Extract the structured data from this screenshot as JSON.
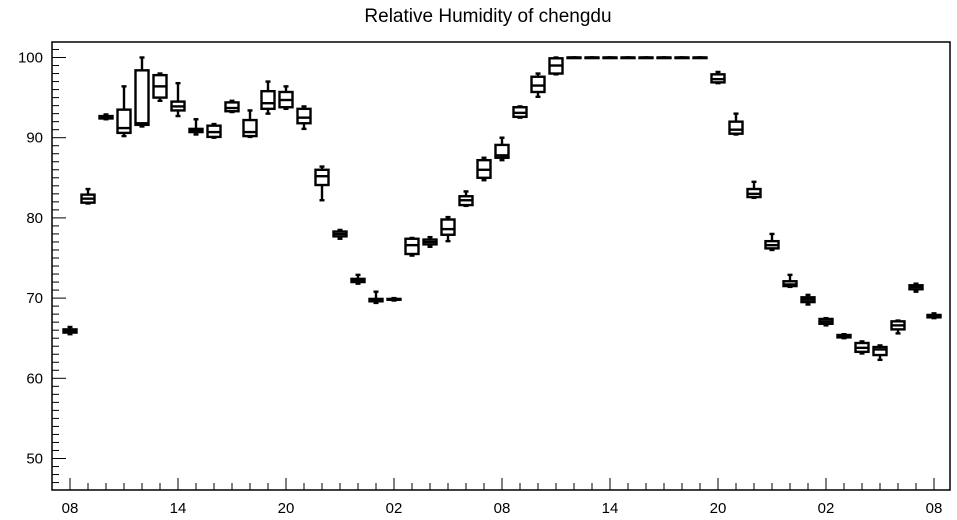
{
  "chart_data": {
    "type": "boxplot",
    "title": "Relative Humidity of chengdu",
    "xlabel": "",
    "ylabel": "",
    "ylim": [
      46,
      102
    ],
    "yticks": [
      50,
      60,
      70,
      80,
      90,
      100
    ],
    "x_tick_labels": [
      {
        "index": 0,
        "label": "08"
      },
      {
        "index": 6,
        "label": "14"
      },
      {
        "index": 12,
        "label": "20"
      },
      {
        "index": 18,
        "label": "02"
      },
      {
        "index": 24,
        "label": "08"
      },
      {
        "index": 30,
        "label": "14"
      },
      {
        "index": 36,
        "label": "20"
      },
      {
        "index": 42,
        "label": "02"
      },
      {
        "index": 48,
        "label": "08"
      }
    ],
    "grid": false,
    "boxes": [
      {
        "index": 0,
        "min": 65.5,
        "q1": 65.7,
        "median": 65.9,
        "q3": 66.1,
        "max": 66.4
      },
      {
        "index": 1,
        "min": 81.8,
        "q1": 81.9,
        "median": 82.4,
        "q3": 82.9,
        "max": 83.6
      },
      {
        "index": 2,
        "min": 92.3,
        "q1": 92.4,
        "median": 92.6,
        "q3": 92.7,
        "max": 92.9
      },
      {
        "index": 3,
        "min": 90.2,
        "q1": 90.6,
        "median": 91.2,
        "q3": 93.5,
        "max": 96.4
      },
      {
        "index": 4,
        "min": 91.4,
        "q1": 91.6,
        "median": 91.8,
        "q3": 98.4,
        "max": 100.0
      },
      {
        "index": 5,
        "min": 94.6,
        "q1": 95.0,
        "median": 96.4,
        "q3": 97.8,
        "max": 98.0
      },
      {
        "index": 6,
        "min": 92.7,
        "q1": 93.4,
        "median": 93.9,
        "q3": 94.5,
        "max": 96.8
      },
      {
        "index": 7,
        "min": 90.4,
        "q1": 90.7,
        "median": 90.9,
        "q3": 91.1,
        "max": 92.3
      },
      {
        "index": 8,
        "min": 90.0,
        "q1": 90.1,
        "median": 90.7,
        "q3": 91.5,
        "max": 91.7
      },
      {
        "index": 9,
        "min": 93.2,
        "q1": 93.3,
        "median": 93.7,
        "q3": 94.4,
        "max": 94.6
      },
      {
        "index": 10,
        "min": 90.1,
        "q1": 90.2,
        "median": 90.7,
        "q3": 92.2,
        "max": 93.4
      },
      {
        "index": 11,
        "min": 93.0,
        "q1": 93.6,
        "median": 94.3,
        "q3": 95.8,
        "max": 97.0
      },
      {
        "index": 12,
        "min": 93.6,
        "q1": 93.8,
        "median": 94.7,
        "q3": 95.7,
        "max": 96.4
      },
      {
        "index": 13,
        "min": 91.1,
        "q1": 91.8,
        "median": 92.5,
        "q3": 93.6,
        "max": 93.9
      },
      {
        "index": 14,
        "min": 82.2,
        "q1": 84.1,
        "median": 85.2,
        "q3": 86.0,
        "max": 86.4
      },
      {
        "index": 15,
        "min": 77.4,
        "q1": 77.7,
        "median": 78.0,
        "q3": 78.3,
        "max": 78.5
      },
      {
        "index": 16,
        "min": 71.8,
        "q1": 72.0,
        "median": 72.2,
        "q3": 72.4,
        "max": 72.9
      },
      {
        "index": 17,
        "min": 69.4,
        "q1": 69.6,
        "median": 69.7,
        "q3": 69.9,
        "max": 70.8
      },
      {
        "index": 18,
        "min": 69.7,
        "q1": 69.8,
        "median": 69.8,
        "q3": 69.9,
        "max": 70.0
      },
      {
        "index": 19,
        "min": 75.3,
        "q1": 75.5,
        "median": 76.6,
        "q3": 77.4,
        "max": 77.5
      },
      {
        "index": 20,
        "min": 76.4,
        "q1": 76.7,
        "median": 77.0,
        "q3": 77.3,
        "max": 77.6
      },
      {
        "index": 21,
        "min": 77.1,
        "q1": 77.9,
        "median": 78.6,
        "q3": 79.8,
        "max": 80.1
      },
      {
        "index": 22,
        "min": 81.5,
        "q1": 81.6,
        "median": 82.2,
        "q3": 82.7,
        "max": 83.3
      },
      {
        "index": 23,
        "min": 84.7,
        "q1": 85.0,
        "median": 86.0,
        "q3": 87.2,
        "max": 87.5
      },
      {
        "index": 24,
        "min": 87.2,
        "q1": 87.5,
        "median": 87.8,
        "q3": 89.1,
        "max": 90.0
      },
      {
        "index": 25,
        "min": 92.5,
        "q1": 92.6,
        "median": 93.1,
        "q3": 93.8,
        "max": 93.9
      },
      {
        "index": 26,
        "min": 95.1,
        "q1": 95.7,
        "median": 96.5,
        "q3": 97.6,
        "max": 98.0
      },
      {
        "index": 27,
        "min": 97.9,
        "q1": 98.0,
        "median": 99.0,
        "q3": 99.9,
        "max": 100.0
      },
      {
        "index": 28,
        "min": 100.0,
        "q1": 100.0,
        "median": 100.0,
        "q3": 100.0,
        "max": 100.0
      },
      {
        "index": 29,
        "min": 100.0,
        "q1": 100.0,
        "median": 100.0,
        "q3": 100.0,
        "max": 100.0
      },
      {
        "index": 30,
        "min": 100.0,
        "q1": 100.0,
        "median": 100.0,
        "q3": 100.0,
        "max": 100.0
      },
      {
        "index": 31,
        "min": 100.0,
        "q1": 100.0,
        "median": 100.0,
        "q3": 100.0,
        "max": 100.0
      },
      {
        "index": 32,
        "min": 100.0,
        "q1": 100.0,
        "median": 100.0,
        "q3": 100.0,
        "max": 100.0
      },
      {
        "index": 33,
        "min": 100.0,
        "q1": 100.0,
        "median": 100.0,
        "q3": 100.0,
        "max": 100.0
      },
      {
        "index": 34,
        "min": 100.0,
        "q1": 100.0,
        "median": 100.0,
        "q3": 100.0,
        "max": 100.0
      },
      {
        "index": 35,
        "min": 100.0,
        "q1": 100.0,
        "median": 100.0,
        "q3": 100.0,
        "max": 100.0
      },
      {
        "index": 36,
        "min": 96.8,
        "q1": 96.9,
        "median": 97.3,
        "q3": 97.9,
        "max": 98.2
      },
      {
        "index": 37,
        "min": 90.4,
        "q1": 90.5,
        "median": 91.0,
        "q3": 92.0,
        "max": 93.0
      },
      {
        "index": 38,
        "min": 82.5,
        "q1": 82.6,
        "median": 83.0,
        "q3": 83.6,
        "max": 84.5
      },
      {
        "index": 39,
        "min": 76.0,
        "q1": 76.2,
        "median": 76.6,
        "q3": 77.1,
        "max": 78.0
      },
      {
        "index": 40,
        "min": 71.4,
        "q1": 71.5,
        "median": 71.7,
        "q3": 72.1,
        "max": 72.9
      },
      {
        "index": 41,
        "min": 69.2,
        "q1": 69.5,
        "median": 69.8,
        "q3": 70.1,
        "max": 70.4
      },
      {
        "index": 42,
        "min": 66.6,
        "q1": 66.8,
        "median": 67.1,
        "q3": 67.4,
        "max": 67.5
      },
      {
        "index": 43,
        "min": 65.0,
        "q1": 65.1,
        "median": 65.3,
        "q3": 65.4,
        "max": 65.5
      },
      {
        "index": 44,
        "min": 63.1,
        "q1": 63.3,
        "median": 63.8,
        "q3": 64.4,
        "max": 64.6
      },
      {
        "index": 45,
        "min": 62.3,
        "q1": 62.9,
        "median": 63.6,
        "q3": 63.9,
        "max": 64.1
      },
      {
        "index": 46,
        "min": 65.6,
        "q1": 66.1,
        "median": 66.6,
        "q3": 67.1,
        "max": 67.2
      },
      {
        "index": 47,
        "min": 70.8,
        "q1": 71.1,
        "median": 71.4,
        "q3": 71.6,
        "max": 71.8
      },
      {
        "index": 48,
        "min": 67.5,
        "q1": 67.6,
        "median": 67.8,
        "q3": 67.9,
        "max": 68.1
      }
    ]
  }
}
